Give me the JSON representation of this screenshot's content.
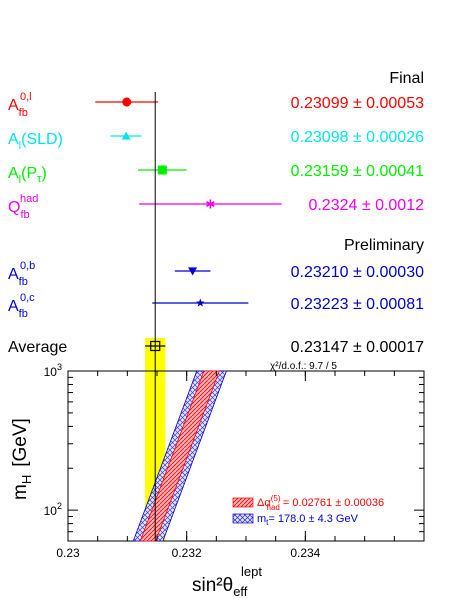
{
  "chart_data": {
    "type": "scatter",
    "title": "",
    "xlabel": "sin²θ",
    "xlabel_sup": "lept",
    "xlabel_sub": "eff",
    "ylabel": "m",
    "ylabel_sub": "H",
    "ylabel_unit": "[GeV]",
    "xlim": [
      0.23,
      0.236
    ],
    "ylim": [
      60,
      1000
    ],
    "yscale": "log",
    "x_ticks": [
      0.23,
      0.232,
      0.234
    ],
    "x_tick_labels": [
      "0.23",
      "0.232",
      "0.234"
    ],
    "y_ticks": [
      100,
      1000
    ],
    "y_tick_labels": [
      [
        "10",
        "2"
      ],
      [
        "10",
        "3"
      ]
    ],
    "section_labels": {
      "final": "Final",
      "preliminary": "Preliminary"
    },
    "measurements": [
      {
        "base": "A",
        "sub": "fb",
        "sup": "0,l",
        "value": 0.23099,
        "error": 0.00053,
        "text": "0.23099 ± 0.00053",
        "marker": "circle",
        "color": "#ff0000"
      },
      {
        "base": "A",
        "sub": "l",
        "paren": "SLD",
        "value": 0.23098,
        "error": 0.00026,
        "text": "0.23098 ± 0.00026",
        "marker": "triangle-up",
        "color": "#00e6e6"
      },
      {
        "base": "A",
        "sub": "l",
        "paren": "P",
        "paren_sub": "τ",
        "value": 0.23159,
        "error": 0.00041,
        "text": "0.23159 ± 0.00041",
        "marker": "square",
        "color": "#00ee00"
      },
      {
        "base": "Q",
        "sub": "fb",
        "sup": "had",
        "value": 0.2324,
        "error": 0.0012,
        "text": "0.2324 ± 0.0012",
        "marker": "star",
        "color": "#ee00ee"
      },
      {
        "base": "A",
        "sub": "fb",
        "sup": "0,b",
        "value": 0.2321,
        "error": 0.0003,
        "text": "0.23210 ± 0.00030",
        "marker": "triangle-down",
        "color": "#0000cc"
      },
      {
        "base": "A",
        "sub": "fb",
        "sup": "0,c",
        "value": 0.23223,
        "error": 0.00081,
        "text": "0.23223 ± 0.00081",
        "marker": "star5",
        "color": "#0000cc"
      }
    ],
    "average": {
      "label": "Average",
      "value": 0.23147,
      "error": 0.00017,
      "text": "0.23147 ± 0.00017",
      "chi2_text": "χ²/d.o.f.: 9.7 / 5",
      "color": "#000000",
      "band_color": "#ffff00"
    },
    "bands": [
      {
        "name": "Δα",
        "name_sup": "(5)",
        "name_sub": "had",
        "legend_value": "= 0.02761 ± 0.00036",
        "color": "#ff0000",
        "points": [
          {
            "mH": 60,
            "x": 0.23135
          },
          {
            "mH": 1000,
            "x": 0.23242
          }
        ],
        "half_width": 0.00013
      },
      {
        "name": "m",
        "name_sub": "t",
        "legend_value": "= 178.0 ± 4.3 GeV",
        "color": "#0000cc",
        "points": [
          {
            "mH": 60,
            "x": 0.23135
          },
          {
            "mH": 1000,
            "x": 0.23242
          }
        ],
        "half_width": 0.00025
      }
    ]
  }
}
